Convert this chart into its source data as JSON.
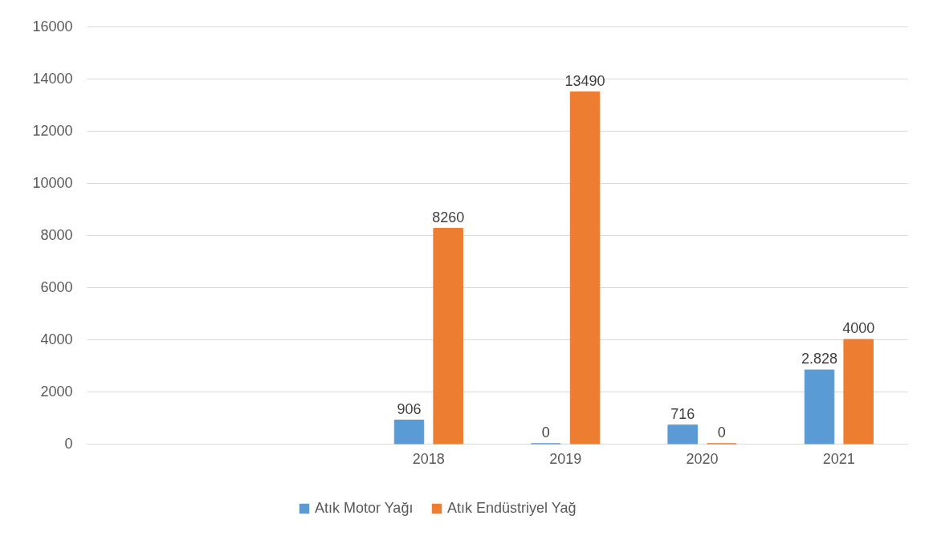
{
  "chart_data": {
    "type": "bar",
    "categories": [
      null,
      null,
      "2018",
      "2019",
      "2020",
      "2021"
    ],
    "series": [
      {
        "name": "Atık Motor Yağı",
        "color": "#5b9bd5",
        "values": [
          null,
          null,
          906,
          0,
          716,
          2828
        ],
        "value_labels": [
          null,
          null,
          "906",
          "0",
          "716",
          "2.828"
        ]
      },
      {
        "name": "Atık Endüstriyel Yağ",
        "color": "#ed7d31",
        "values": [
          null,
          null,
          8260,
          13490,
          0,
          4000
        ],
        "value_labels": [
          null,
          null,
          "8260",
          "13490",
          "0",
          "4000"
        ]
      }
    ],
    "ylim": [
      0,
      16000
    ],
    "yticks": [
      0,
      2000,
      4000,
      6000,
      8000,
      10000,
      12000,
      14000,
      16000
    ],
    "grid": "y",
    "legend": "bottom"
  }
}
